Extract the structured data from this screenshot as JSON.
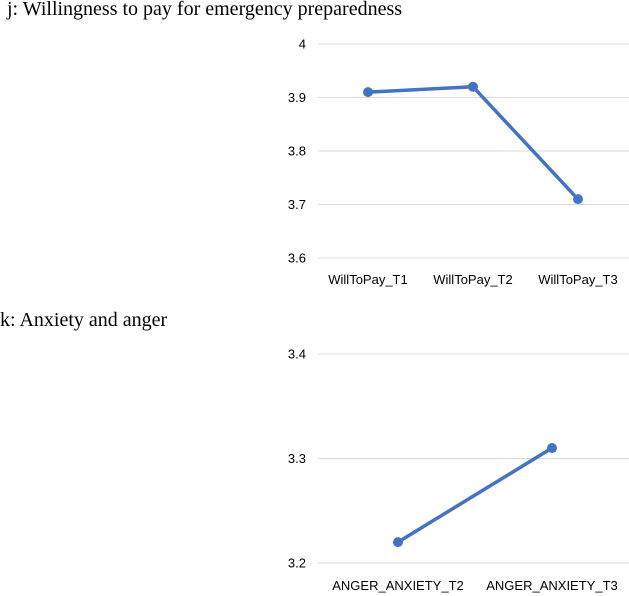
{
  "chart_data": [
    {
      "type": "line",
      "title": "j: Willingness to pay for emergency preparedness",
      "categories": [
        "WillToPay_T1",
        "WillToPay_T2",
        "WillToPay_T3"
      ],
      "values": [
        3.91,
        3.92,
        3.71
      ],
      "ylim": [
        3.6,
        4.0
      ],
      "yticks": [
        "3.6",
        "3.7",
        "3.8",
        "3.9",
        "4"
      ],
      "grid": true,
      "color": "#4472C4"
    },
    {
      "type": "line",
      "title": "k: Anxiety and anger",
      "categories": [
        "ANGER_ANXIETY_T2",
        "ANGER_ANXIETY_T3"
      ],
      "values": [
        3.22,
        3.31
      ],
      "ylim": [
        3.2,
        3.4
      ],
      "yticks": [
        "3.2",
        "3.3",
        "3.4"
      ],
      "grid": true,
      "color": "#4472C4"
    }
  ]
}
